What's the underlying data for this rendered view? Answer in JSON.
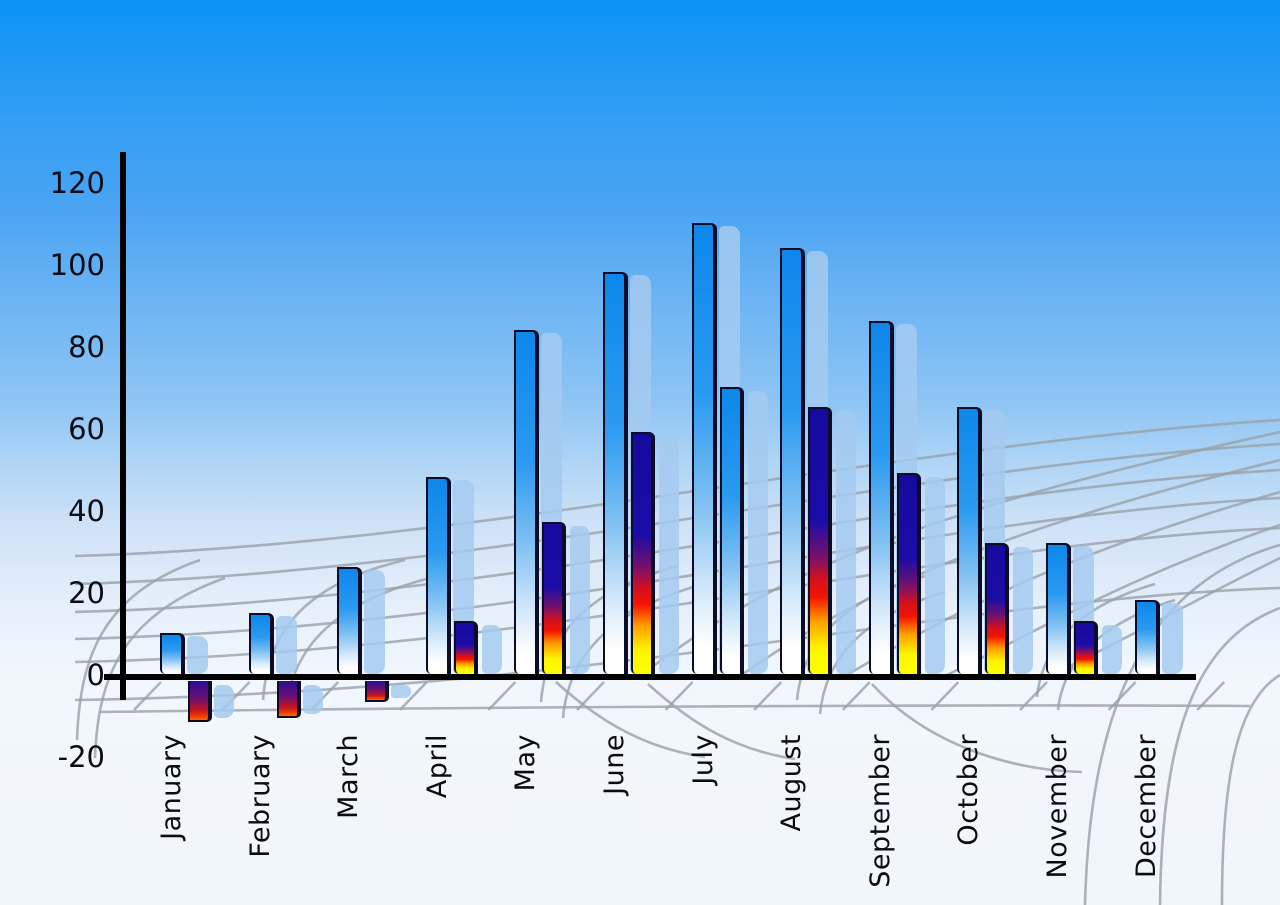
{
  "chart_data": {
    "type": "bar",
    "title": "",
    "categories": [
      "January",
      "February",
      "March",
      "April",
      "May",
      "June",
      "July",
      "August",
      "September",
      "October",
      "November",
      "December"
    ],
    "series": [
      {
        "name": "primary-blue-series",
        "values": [
          10,
          15,
          26,
          48,
          84,
          98,
          110,
          104,
          86,
          65,
          32,
          18
        ]
      },
      {
        "name": "secondary-heat-series",
        "values": [
          -10,
          -9,
          -5,
          13,
          37,
          59,
          70,
          65,
          49,
          32,
          13,
          null
        ]
      }
    ],
    "secondary_style_exceptions": {
      "July": "blue-gradient"
    },
    "y_axis": {
      "ticks": [
        120,
        100,
        80,
        60,
        40,
        20,
        0,
        -20
      ],
      "min": -20,
      "max": 120
    },
    "x_axis": {
      "label_rotation_deg": -90
    },
    "grid": true,
    "legend": "none"
  },
  "colors": {
    "sky_top": "#0a93f5",
    "sky_bottom": "#f1f6fb",
    "bar_blue": "#1e8fe8",
    "bar_navy": "#150a9e",
    "bar_red": "#e01212",
    "bar_yellow": "#ffff00",
    "bar_shadow_blue": "#a5caf0",
    "grid_gray": "#99a1a9",
    "axis_color": "#000000",
    "text_color": "#0b0b14"
  }
}
